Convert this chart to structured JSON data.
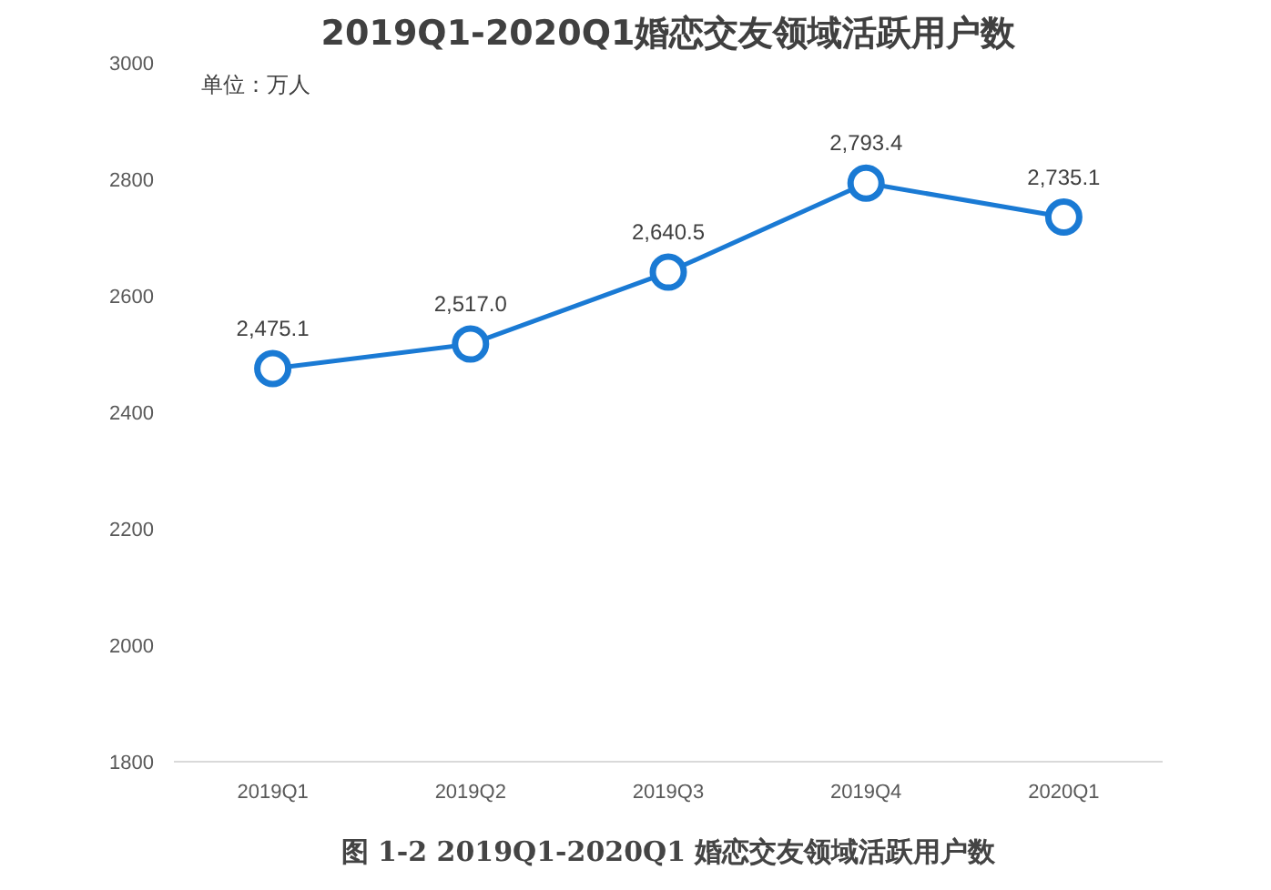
{
  "chart_data": {
    "type": "line",
    "title": "2019Q1-2020Q1婚恋交友领域活跃用户数",
    "categories": [
      "2019Q1",
      "2019Q2",
      "2019Q3",
      "2019Q4",
      "2020Q1"
    ],
    "series": [
      {
        "color": "#1a7ad4",
        "values": [
          2475.1,
          2517.0,
          2640.5,
          2793.4,
          2735.1
        ],
        "value_labels": [
          "2,475.1",
          "2,517.0",
          "2,640.5",
          "2,793.4",
          "2,735.1"
        ]
      }
    ],
    "ylim": [
      1800,
      3000
    ],
    "yticks": [
      1800,
      2000,
      2200,
      2400,
      2600,
      2800,
      3000
    ],
    "marker": "circle",
    "line_style": "solid",
    "grid": false,
    "annotations": [
      "单位：万人",
      "图 1-2 2019Q1-2020Q1 婚恋交友领域活跃用户数"
    ]
  }
}
